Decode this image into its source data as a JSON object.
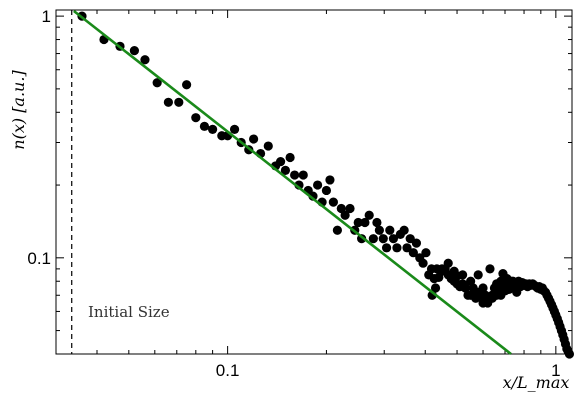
{
  "chart_data": {
    "type": "scatter",
    "title": "",
    "xlabel": "x/L_max",
    "ylabel": "n(x) [a.u.]",
    "xscale": "log",
    "yscale": "log",
    "xlim": [
      0.03,
      1.12
    ],
    "ylim": [
      0.04,
      1.06
    ],
    "grid": false,
    "x_ticks": [
      {
        "value": 0.1,
        "label": "0.1"
      },
      {
        "value": 1,
        "label": "1"
      }
    ],
    "y_ticks": [
      {
        "value": 0.1,
        "label": "0.1"
      },
      {
        "value": 1,
        "label": "1"
      }
    ],
    "fit_line": {
      "color": "#1a8a1a",
      "x": [
        0.034,
        0.73
      ],
      "y": [
        1.05,
        0.04
      ]
    },
    "vertical_marker": {
      "x": 0.0335,
      "label": "Initial Size",
      "style": "dashed"
    },
    "point_color": "#000000",
    "points": [
      [
        0.036,
        1.0
      ],
      [
        0.042,
        0.8
      ],
      [
        0.047,
        0.75
      ],
      [
        0.052,
        0.72
      ],
      [
        0.056,
        0.66
      ],
      [
        0.061,
        0.53
      ],
      [
        0.066,
        0.44
      ],
      [
        0.071,
        0.44
      ],
      [
        0.075,
        0.52
      ],
      [
        0.08,
        0.38
      ],
      [
        0.085,
        0.35
      ],
      [
        0.09,
        0.34
      ],
      [
        0.096,
        0.32
      ],
      [
        0.1,
        0.32
      ],
      [
        0.105,
        0.34
      ],
      [
        0.11,
        0.3
      ],
      [
        0.116,
        0.28
      ],
      [
        0.12,
        0.31
      ],
      [
        0.126,
        0.27
      ],
      [
        0.133,
        0.29
      ],
      [
        0.14,
        0.24
      ],
      [
        0.145,
        0.25
      ],
      [
        0.15,
        0.23
      ],
      [
        0.155,
        0.26
      ],
      [
        0.16,
        0.22
      ],
      [
        0.165,
        0.2
      ],
      [
        0.17,
        0.22
      ],
      [
        0.176,
        0.19
      ],
      [
        0.182,
        0.18
      ],
      [
        0.188,
        0.2
      ],
      [
        0.194,
        0.17
      ],
      [
        0.2,
        0.19
      ],
      [
        0.205,
        0.21
      ],
      [
        0.21,
        0.17
      ],
      [
        0.216,
        0.13
      ],
      [
        0.222,
        0.16
      ],
      [
        0.228,
        0.15
      ],
      [
        0.236,
        0.16
      ],
      [
        0.244,
        0.13
      ],
      [
        0.25,
        0.14
      ],
      [
        0.256,
        0.12
      ],
      [
        0.262,
        0.14
      ],
      [
        0.27,
        0.15
      ],
      [
        0.278,
        0.12
      ],
      [
        0.285,
        0.14
      ],
      [
        0.29,
        0.13
      ],
      [
        0.298,
        0.12
      ],
      [
        0.305,
        0.11
      ],
      [
        0.312,
        0.13
      ],
      [
        0.32,
        0.12
      ],
      [
        0.328,
        0.11
      ],
      [
        0.336,
        0.125
      ],
      [
        0.345,
        0.13
      ],
      [
        0.352,
        0.11
      ],
      [
        0.36,
        0.12
      ],
      [
        0.368,
        0.105
      ],
      [
        0.376,
        0.115
      ],
      [
        0.385,
        0.1
      ],
      [
        0.394,
        0.095
      ],
      [
        0.402,
        0.105
      ],
      [
        0.41,
        0.085
      ],
      [
        0.418,
        0.09
      ],
      [
        0.426,
        0.082
      ],
      [
        0.434,
        0.09
      ],
      [
        0.44,
        0.083
      ],
      [
        0.45,
        0.088
      ],
      [
        0.46,
        0.09
      ],
      [
        0.47,
        0.085
      ],
      [
        0.48,
        0.082
      ],
      [
        0.49,
        0.08
      ],
      [
        0.5,
        0.078
      ],
      [
        0.51,
        0.076
      ],
      [
        0.52,
        0.085
      ],
      [
        0.53,
        0.075
      ],
      [
        0.54,
        0.07
      ],
      [
        0.55,
        0.08
      ],
      [
        0.56,
        0.075
      ],
      [
        0.57,
        0.068
      ],
      [
        0.58,
        0.072
      ],
      [
        0.59,
        0.07
      ],
      [
        0.6,
        0.065
      ],
      [
        0.61,
        0.07
      ],
      [
        0.62,
        0.068
      ],
      [
        0.63,
        0.09
      ],
      [
        0.64,
        0.07
      ],
      [
        0.65,
        0.075
      ],
      [
        0.66,
        0.078
      ],
      [
        0.67,
        0.072
      ],
      [
        0.68,
        0.08
      ],
      [
        0.69,
        0.075
      ],
      [
        0.7,
        0.078
      ],
      [
        0.71,
        0.082
      ],
      [
        0.72,
        0.077
      ],
      [
        0.73,
        0.08
      ],
      [
        0.74,
        0.076
      ],
      [
        0.75,
        0.078
      ],
      [
        0.76,
        0.077
      ],
      [
        0.77,
        0.08
      ],
      [
        0.78,
        0.076
      ],
      [
        0.79,
        0.079
      ],
      [
        0.8,
        0.077
      ],
      [
        0.81,
        0.078
      ],
      [
        0.82,
        0.076
      ],
      [
        0.83,
        0.078
      ],
      [
        0.84,
        0.077
      ],
      [
        0.85,
        0.078
      ],
      [
        0.86,
        0.077
      ],
      [
        0.87,
        0.076
      ],
      [
        0.88,
        0.075
      ],
      [
        0.89,
        0.076
      ],
      [
        0.9,
        0.074
      ],
      [
        0.91,
        0.075
      ],
      [
        0.92,
        0.073
      ],
      [
        0.93,
        0.072
      ],
      [
        0.94,
        0.07
      ],
      [
        0.95,
        0.068
      ],
      [
        0.96,
        0.066
      ],
      [
        0.97,
        0.064
      ],
      [
        0.98,
        0.062
      ],
      [
        0.99,
        0.06
      ],
      [
        1.0,
        0.058
      ],
      [
        1.01,
        0.056
      ],
      [
        1.02,
        0.054
      ],
      [
        1.03,
        0.052
      ],
      [
        1.04,
        0.05
      ],
      [
        1.05,
        0.048
      ],
      [
        1.06,
        0.046
      ],
      [
        1.07,
        0.044
      ],
      [
        1.08,
        0.042
      ],
      [
        1.09,
        0.041
      ],
      [
        1.1,
        0.04
      ],
      [
        0.58,
        0.085
      ],
      [
        0.62,
        0.065
      ],
      [
        0.66,
        0.07
      ],
      [
        0.7,
        0.073
      ],
      [
        0.5,
        0.084
      ],
      [
        0.52,
        0.078
      ],
      [
        0.55,
        0.07
      ],
      [
        0.6,
        0.075
      ],
      [
        0.64,
        0.068
      ],
      [
        0.68,
        0.07
      ],
      [
        0.72,
        0.074
      ],
      [
        0.76,
        0.072
      ],
      [
        0.74,
        0.08
      ],
      [
        0.69,
        0.086
      ],
      [
        0.45,
        0.09
      ],
      [
        0.47,
        0.095
      ],
      [
        0.49,
        0.088
      ],
      [
        0.43,
        0.075
      ],
      [
        0.42,
        0.07
      ]
    ]
  }
}
